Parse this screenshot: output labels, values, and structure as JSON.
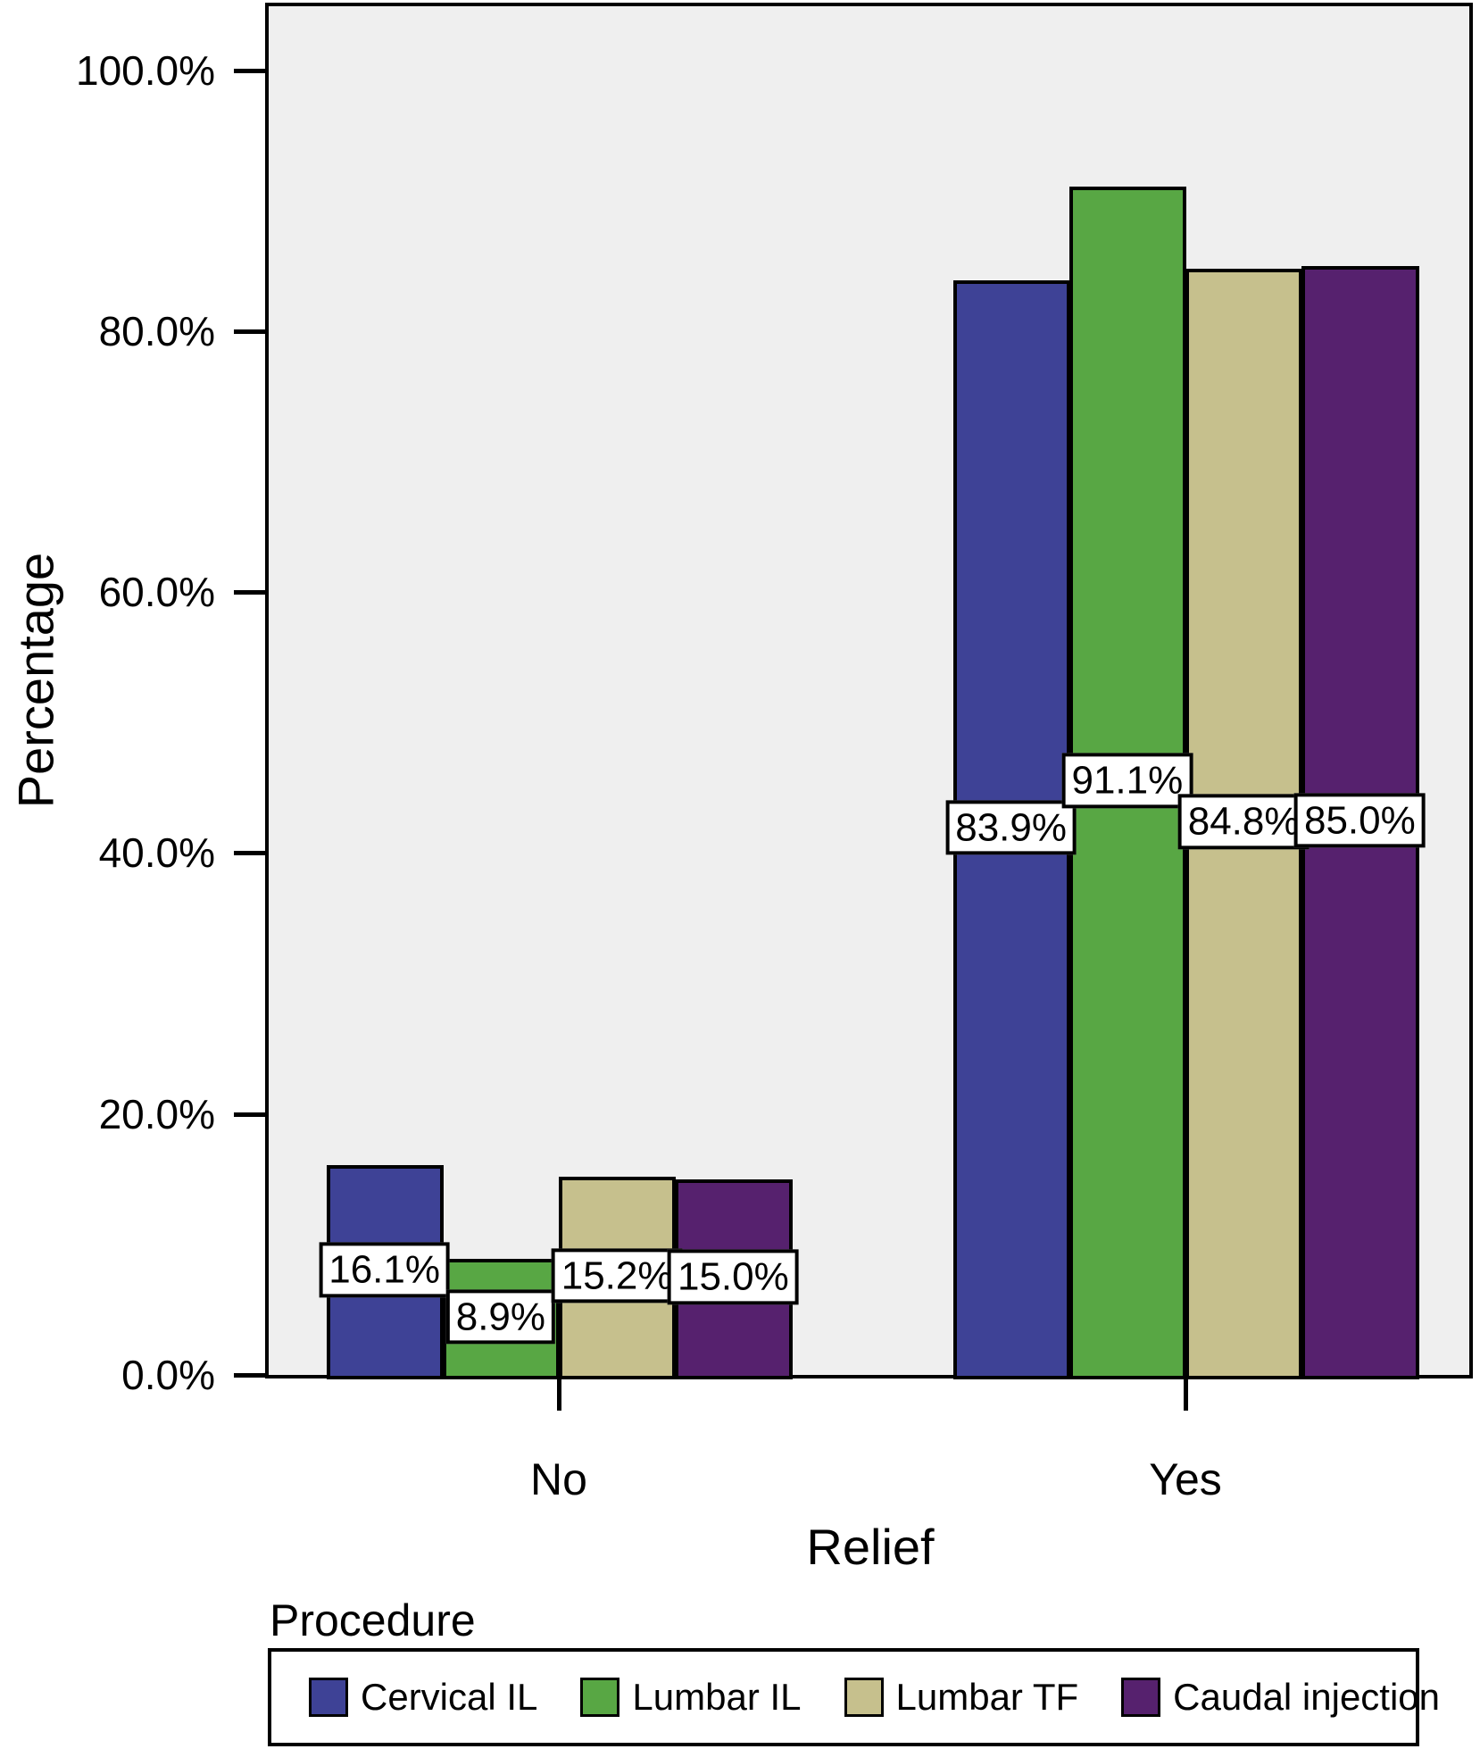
{
  "chart_data": {
    "type": "bar",
    "title": "",
    "xlabel": "Relief",
    "ylabel": "Percentage",
    "legend_title": "Procedure",
    "legend_position": "bottom",
    "categories": [
      "No",
      "Yes"
    ],
    "series": [
      {
        "name": "Cervical IL",
        "color": "#3E4296",
        "values": [
          16.1,
          83.9
        ]
      },
      {
        "name": "Lumbar IL",
        "color": "#58A744",
        "values": [
          8.9,
          91.1
        ]
      },
      {
        "name": "Lumbar TF",
        "color": "#C6C08D",
        "values": [
          15.2,
          84.8
        ]
      },
      {
        "name": "Caudal injection",
        "color": "#56216E",
        "values": [
          15.0,
          85.0
        ]
      }
    ],
    "value_label_format": "{value}%",
    "y_ticks": [
      {
        "value": 0,
        "label": "0.0%"
      },
      {
        "value": 20,
        "label": "20.0%"
      },
      {
        "value": 40,
        "label": "40.0%"
      },
      {
        "value": 60,
        "label": "60.0%"
      },
      {
        "value": 80,
        "label": "80.0%"
      },
      {
        "value": 100,
        "label": "100.0%"
      }
    ],
    "ylim": [
      0,
      105.2
    ],
    "grid": false,
    "plot_bg": "#EFEFEF",
    "bar_border_color": "#000000"
  }
}
